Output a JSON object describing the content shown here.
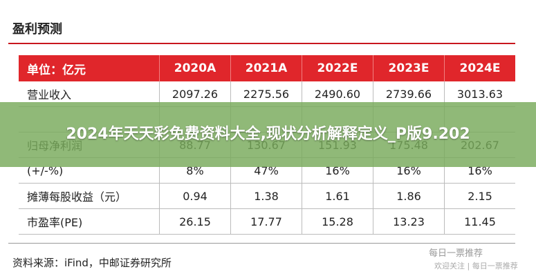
{
  "header": {
    "title": "盈利预测"
  },
  "table": {
    "columns": [
      "单位：亿元",
      "2020A",
      "2021A",
      "2022E",
      "2023E",
      "2024E"
    ],
    "rows": [
      [
        "营业收入",
        "2097.26",
        "2275.56",
        "2490.60",
        "2739.66",
        "3013.63"
      ],
      [],
      [
        "归母净利润",
        "88.77",
        "130.67",
        "151.93",
        "175.48",
        "202.67"
      ],
      [
        "(+/-%)",
        "8%",
        "47%",
        "16%",
        "16%",
        "16%"
      ],
      [
        "摊薄每股收益（元）",
        "0.94",
        "1.38",
        "1.61",
        "1.86",
        "2.15"
      ],
      [
        "市盈率(PE)",
        "26.15",
        "17.77",
        "15.28",
        "13.23",
        "11.45"
      ]
    ]
  },
  "source": "资料来源：iFind，中邮证券研究所",
  "banner": "2024年天天彩免费资料大全,现状分析解释定义_P版9.202",
  "watermark": {
    "main": "每日一票推荐",
    "sub": "欢迎关注 | 每日一票推荐"
  }
}
